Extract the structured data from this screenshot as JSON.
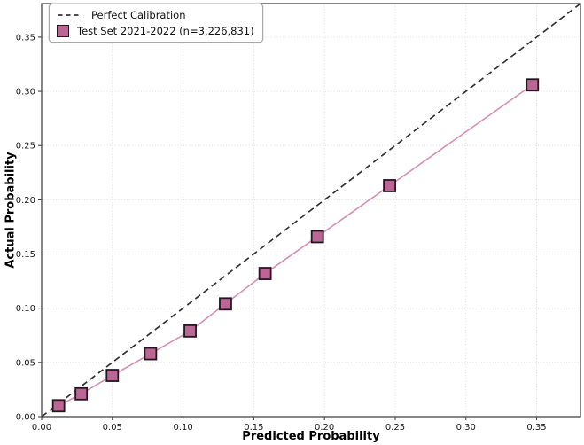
{
  "colors": {
    "frame": "#444444",
    "grid": "#d9d9d9",
    "tick": "#1a1a1a",
    "legend_border": "#a9a9a9",
    "background": "#ffffff"
  },
  "chart_data": {
    "type": "line",
    "title": "",
    "xlabel": "Predicted Probability",
    "ylabel": "Actual Probability",
    "xlim": [
      0,
      0.381
    ],
    "ylim": [
      0,
      0.381
    ],
    "xticks": [
      0,
      0.05,
      0.1,
      0.15,
      0.2,
      0.25,
      0.3,
      0.35
    ],
    "xtick_labels": [
      "0.00",
      "0.05",
      "0.10",
      "0.15",
      "0.20",
      "0.25",
      "0.30",
      "0.35"
    ],
    "yticks": [
      0,
      0.05,
      0.1,
      0.15,
      0.2,
      0.25,
      0.3,
      0.35
    ],
    "ytick_labels": [
      "0.00",
      "0.05",
      "0.10",
      "0.15",
      "0.20",
      "0.25",
      "0.30",
      "0.35"
    ],
    "grid": true,
    "legend_position": "upper-left",
    "series": [
      {
        "name": "Perfect Calibration",
        "style": "dashed",
        "color": "#333333",
        "points": [
          [
            0,
            0
          ],
          [
            0.381,
            0.381
          ]
        ]
      },
      {
        "name": "Test Set 2021-2022 (n=3,226,831)",
        "style": "solid",
        "marker": "square",
        "line_color": "#d78fb3",
        "marker_fill": "#bb6695",
        "marker_edge": "#241721",
        "points": [
          [
            0.012,
            0.01
          ],
          [
            0.028,
            0.021
          ],
          [
            0.05,
            0.038
          ],
          [
            0.077,
            0.058
          ],
          [
            0.105,
            0.079
          ],
          [
            0.13,
            0.104
          ],
          [
            0.158,
            0.132
          ],
          [
            0.195,
            0.166
          ],
          [
            0.246,
            0.213
          ],
          [
            0.347,
            0.306
          ]
        ]
      }
    ]
  },
  "legend": {
    "items": [
      {
        "label": "Perfect Calibration",
        "swatch": "dashed-line"
      },
      {
        "label": "Test Set 2021-2022 (n=3,226,831)",
        "swatch": "filled-square"
      }
    ]
  }
}
